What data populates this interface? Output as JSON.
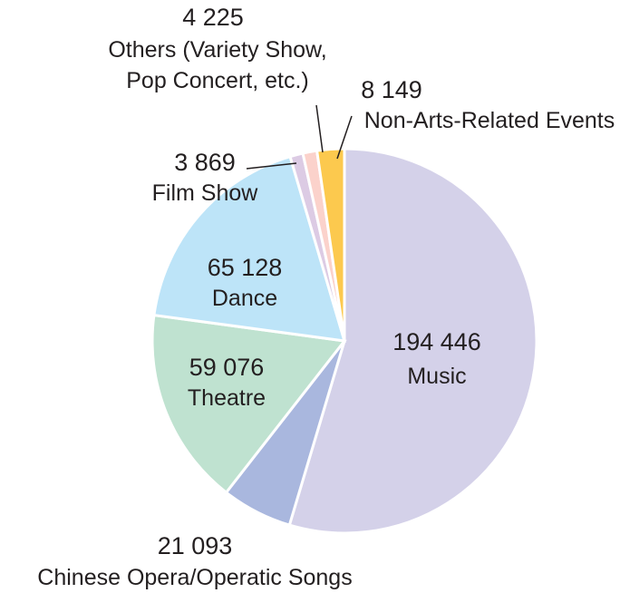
{
  "chart_data": {
    "type": "pie",
    "categories": [
      "Music",
      "Chinese Opera/Operatic Songs",
      "Theatre",
      "Dance",
      "Film Show",
      "Others (Variety Show, Pop Concert, etc.)",
      "Non-Arts-Related Events"
    ],
    "values": [
      194446,
      21093,
      59076,
      65128,
      3869,
      4225,
      8149
    ],
    "value_labels": [
      "194 446",
      "21 093",
      "59 076",
      "65 128",
      "3 869",
      "4 225",
      "8 149"
    ],
    "colors": [
      "#d4d1e9",
      "#a9b7de",
      "#bfe2d0",
      "#bde4f8",
      "#dccbe4",
      "#fbd2cb",
      "#fcc94e"
    ]
  }
}
